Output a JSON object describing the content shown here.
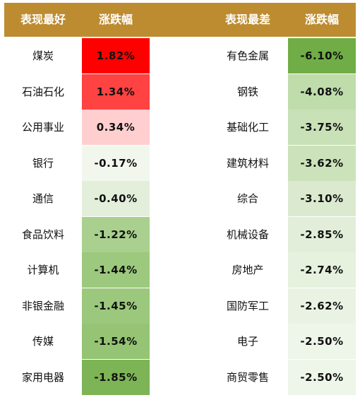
{
  "header": {
    "best_label": "表现最好",
    "best_change_label": "涨跌幅",
    "worst_label": "表现最差",
    "worst_change_label": "涨跌幅"
  },
  "best": [
    {
      "name": "煤炭",
      "change": "1.82%",
      "color": "#ff0000"
    },
    {
      "name": "石油石化",
      "change": "1.34%",
      "color": "#ff4242"
    },
    {
      "name": "公用事业",
      "change": "0.34%",
      "color": "#ffcfcf"
    },
    {
      "name": "银行",
      "change": "-0.17%",
      "color": "#f2f7ee"
    },
    {
      "name": "通信",
      "change": "-0.40%",
      "color": "#e3efdb"
    },
    {
      "name": "食品饮料",
      "change": "-1.22%",
      "color": "#a9d08e"
    },
    {
      "name": "计算机",
      "change": "-1.44%",
      "color": "#9cc97d"
    },
    {
      "name": "非银金融",
      "change": "-1.45%",
      "color": "#9bc87c"
    },
    {
      "name": "传媒",
      "change": "-1.54%",
      "color": "#94c474"
    },
    {
      "name": "家用电器",
      "change": "-1.85%",
      "color": "#7db456"
    }
  ],
  "worst": [
    {
      "name": "有色金属",
      "change": "-6.10%",
      "color": "#70ad47"
    },
    {
      "name": "钢铁",
      "change": "-4.08%",
      "color": "#bfdcab"
    },
    {
      "name": "基础化工",
      "change": "-3.75%",
      "color": "#c8e1b6"
    },
    {
      "name": "建筑材料",
      "change": "-3.62%",
      "color": "#cbe2ba"
    },
    {
      "name": "综合",
      "change": "-3.10%",
      "color": "#dbeacf"
    },
    {
      "name": "机械设备",
      "change": "-2.85%",
      "color": "#e2eed9"
    },
    {
      "name": "房地产",
      "change": "-2.74%",
      "color": "#e6f1de"
    },
    {
      "name": "国防军工",
      "change": "-2.62%",
      "color": "#eaf3e3"
    },
    {
      "name": "电子",
      "change": "-2.50%",
      "color": "#eef5e9"
    },
    {
      "name": "商贸零售",
      "change": "-2.50%",
      "color": "#eef5e9"
    }
  ]
}
